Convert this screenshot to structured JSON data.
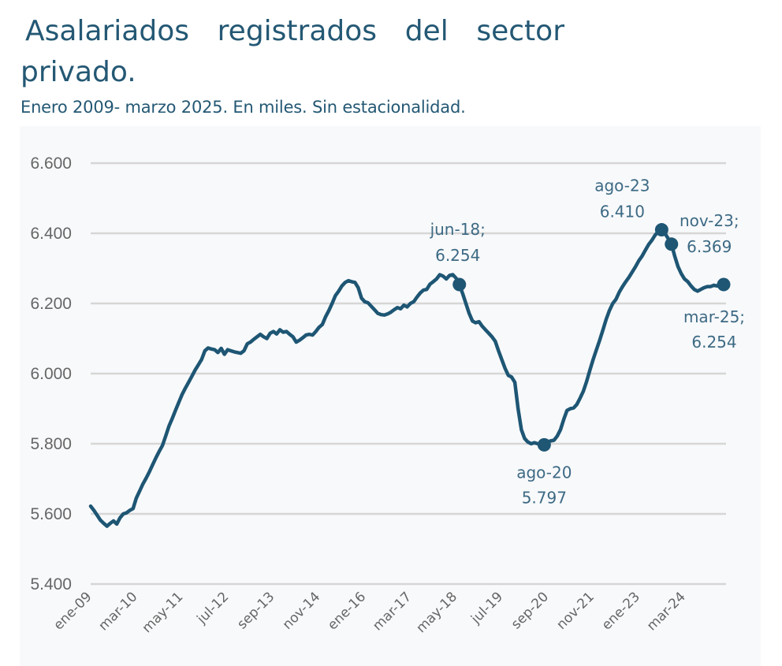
{
  "header": {
    "title_line1": "Asalariados registrados del sector",
    "title_line2": "privado.",
    "subtitle": "Enero 2009- marzo 2025. En miles. Sin estacionalidad."
  },
  "colors": {
    "line": "#1e5674",
    "title": "#245874",
    "annotation": "#3d6a84",
    "grid": "#d6d6d6",
    "panel_background": "#f8f9fb",
    "tick_text": "#666666"
  },
  "chart_data": {
    "type": "line",
    "title": "Asalariados registrados del sector privado.",
    "subtitle": "Enero 2009- marzo 2025. En miles. Sin estacionalidad.",
    "xlabel": "",
    "ylabel": "",
    "ylim": [
      5400,
      6600
    ],
    "yticks": [
      5400,
      5600,
      5800,
      6000,
      6200,
      6400,
      6600
    ],
    "ytick_labels": [
      "5.400",
      "5.600",
      "5.800",
      "6.000",
      "6.200",
      "6.400",
      "6.600"
    ],
    "grid": true,
    "legend": "none",
    "x_start": "ene-09",
    "x_end": "mar-25",
    "x_frequency": "monthly",
    "xticks": [
      {
        "index": 0,
        "label": "ene-09"
      },
      {
        "index": 14,
        "label": "mar-10"
      },
      {
        "index": 28,
        "label": "may-11"
      },
      {
        "index": 42,
        "label": "jul-12"
      },
      {
        "index": 56,
        "label": "sep-13"
      },
      {
        "index": 70,
        "label": "nov-14"
      },
      {
        "index": 84,
        "label": "ene-16"
      },
      {
        "index": 98,
        "label": "mar-17"
      },
      {
        "index": 112,
        "label": "may-18"
      },
      {
        "index": 126,
        "label": "jul-19"
      },
      {
        "index": 140,
        "label": "sep-20"
      },
      {
        "index": 154,
        "label": "nov-21"
      },
      {
        "index": 168,
        "label": "ene-23"
      },
      {
        "index": 182,
        "label": "mar-24"
      }
    ],
    "series": [
      {
        "name": "Asalariados registrados del sector privado",
        "values": [
          5622,
          5610,
          5596,
          5582,
          5573,
          5565,
          5573,
          5580,
          5571,
          5589,
          5600,
          5603,
          5610,
          5615,
          5645,
          5665,
          5685,
          5702,
          5720,
          5740,
          5760,
          5778,
          5795,
          5822,
          5850,
          5872,
          5895,
          5918,
          5940,
          5958,
          5975,
          5992,
          6010,
          6025,
          6040,
          6065,
          6073,
          6070,
          6068,
          6060,
          6072,
          6055,
          6068,
          6065,
          6062,
          6060,
          6058,
          6065,
          6085,
          6090,
          6098,
          6105,
          6112,
          6105,
          6100,
          6115,
          6120,
          6113,
          6125,
          6118,
          6120,
          6112,
          6105,
          6090,
          6095,
          6102,
          6110,
          6112,
          6110,
          6120,
          6132,
          6140,
          6162,
          6180,
          6200,
          6222,
          6235,
          6250,
          6260,
          6265,
          6262,
          6260,
          6245,
          6215,
          6205,
          6202,
          6192,
          6182,
          6172,
          6168,
          6167,
          6170,
          6175,
          6182,
          6188,
          6185,
          6195,
          6190,
          6200,
          6205,
          6218,
          6230,
          6238,
          6240,
          6255,
          6262,
          6270,
          6282,
          6278,
          6270,
          6280,
          6282,
          6272,
          6254,
          6228,
          6200,
          6172,
          6150,
          6145,
          6148,
          6135,
          6125,
          6115,
          6105,
          6092,
          6065,
          6040,
          6015,
          5995,
          5990,
          5975,
          5900,
          5840,
          5815,
          5805,
          5800,
          5803,
          5800,
          5798,
          5797,
          5805,
          5808,
          5810,
          5822,
          5840,
          5870,
          5895,
          5900,
          5902,
          5912,
          5930,
          5950,
          5978,
          6010,
          6040,
          6068,
          6095,
          6125,
          6155,
          6180,
          6200,
          6212,
          6232,
          6248,
          6262,
          6275,
          6290,
          6305,
          6322,
          6335,
          6352,
          6368,
          6380,
          6395,
          6405,
          6410,
          6400,
          6385,
          6369,
          6335,
          6305,
          6285,
          6270,
          6262,
          6250,
          6240,
          6235,
          6240,
          6245,
          6248,
          6248,
          6252,
          6250,
          6256,
          6254
        ]
      }
    ],
    "annotations": [
      {
        "index": 113,
        "label_line1": "jun-18;",
        "label_line2": "6.254",
        "value": 6254,
        "position": "above"
      },
      {
        "index": 139,
        "label_line1": "ago-20",
        "label_line2": "5.797",
        "value": 5797,
        "position": "below"
      },
      {
        "index": 175,
        "label_line1": "ago-23",
        "label_line2": "6.410",
        "value": 6410,
        "position": "above-left"
      },
      {
        "index": 178,
        "label_line1": "nov-23;",
        "label_line2": "6.369",
        "value": 6369,
        "position": "right"
      },
      {
        "index": 194,
        "label_line1": "mar-25;",
        "label_line2": "6.254",
        "value": 6254,
        "position": "below"
      }
    ]
  }
}
